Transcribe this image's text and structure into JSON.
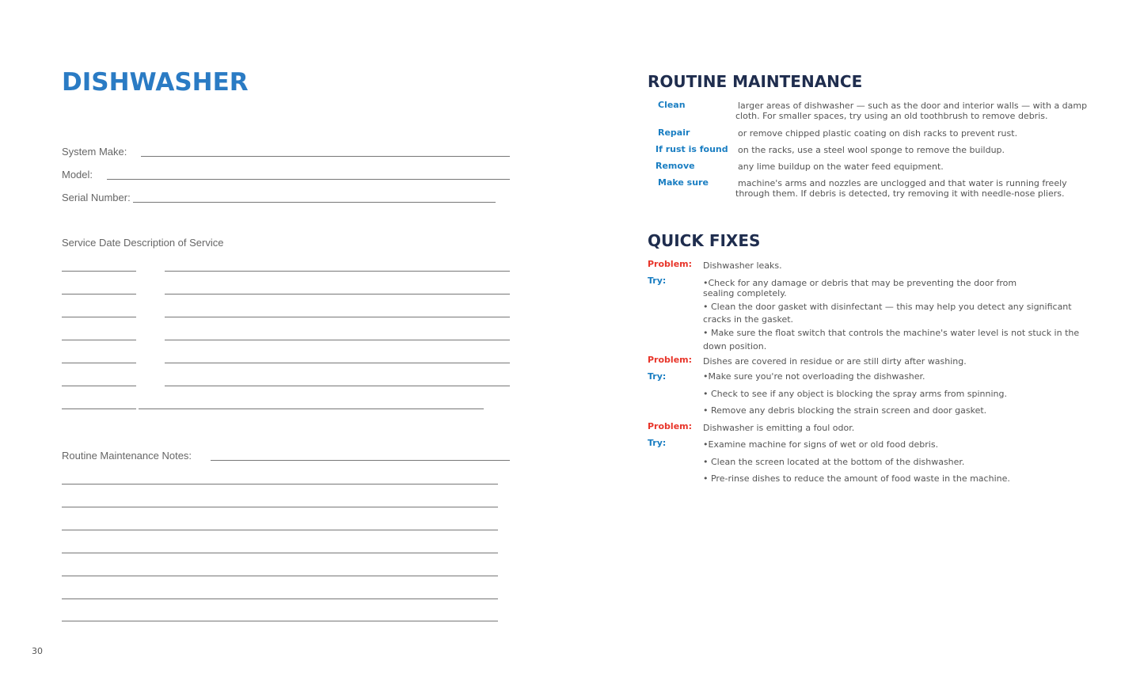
{
  "page_title": "DISHWASHER",
  "form": {
    "system_make": "System   Make:",
    "model": "Model:",
    "serial_number": "Serial Number:",
    "service_header": "Service Date Description of Service",
    "routine_notes": "Routine   Maintenance   Notes:"
  },
  "routine": {
    "heading": "ROUTINE MAINTENANCE",
    "items": [
      {
        "key": "Clean",
        "text": "larger areas of dishwasher — such as the door and interior walls — with a damp",
        "text2": "cloth. For smaller spaces, try using an old toothbrush to remove debris."
      },
      {
        "key": "Repair",
        "text": "or remove chipped plastic coating on dish racks to prevent rust."
      },
      {
        "key": "If  rust  is  found",
        "text": "on the racks, use a steel wool sponge to remove the buildup."
      },
      {
        "key": "Remove",
        "text": "any lime buildup on the water feed equipment."
      },
      {
        "key": "Make sure",
        "text": "machine's arms and nozzles are unclogged and that water is running freely",
        "text2": "through them. If debris is detected, try removing it with needle-nose pliers."
      }
    ]
  },
  "quick_fixes": {
    "heading": "QUICK FIXES",
    "problem_label": "Problem:",
    "try_label": "Try:",
    "groups": [
      {
        "problem": "Dishwasher leaks.",
        "tries": [
          "•Check for any damage or debris that may be preventing the door from",
          "sealing completely.",
          "• Clean the door gasket with disinfectant — this may help you detect any significant",
          "cracks in the gasket.",
          "• Make sure the float switch that controls the machine's water level is not stuck in the",
          "down position."
        ]
      },
      {
        "problem": "Dishes are covered in residue or are still dirty after washing.",
        "tries": [
          "•Make sure you're not overloading the dishwasher.",
          "• Check to see if any object is blocking the spray arms from spinning.",
          "• Remove any debris blocking the strain screen and door gasket."
        ]
      },
      {
        "problem": "Dishwasher is emitting a foul odor.",
        "tries": [
          "•Examine machine for signs of wet or old food debris.",
          "• Clean the screen located at the bottom of the dishwasher.",
          "• Pre-rinse dishes to reduce the amount of food waste in the machine."
        ]
      }
    ]
  },
  "page_number": "30"
}
